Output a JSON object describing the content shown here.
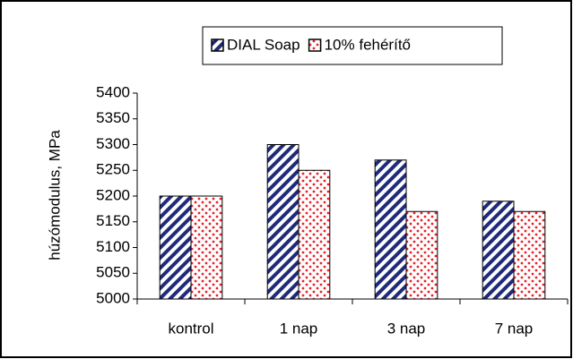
{
  "chart_data": {
    "type": "bar",
    "ylabel": "húzómodulus, MPa",
    "categories": [
      "kontrol",
      "1 nap",
      "3 nap",
      "7 nap"
    ],
    "series": [
      {
        "name": "DIAL Soap",
        "color": "#1f2a7a",
        "pattern": "stripes",
        "values": [
          5200,
          5300,
          5270,
          5190
        ]
      },
      {
        "name": "10% fehérítő",
        "color": "#e8212a",
        "pattern": "dots",
        "values": [
          5200,
          5250,
          5170,
          5170
        ]
      }
    ],
    "ylim": [
      5000,
      5400
    ],
    "yticks": [
      5000,
      5050,
      5100,
      5150,
      5200,
      5250,
      5300,
      5350,
      5400
    ],
    "grid": false,
    "legend": "top"
  }
}
